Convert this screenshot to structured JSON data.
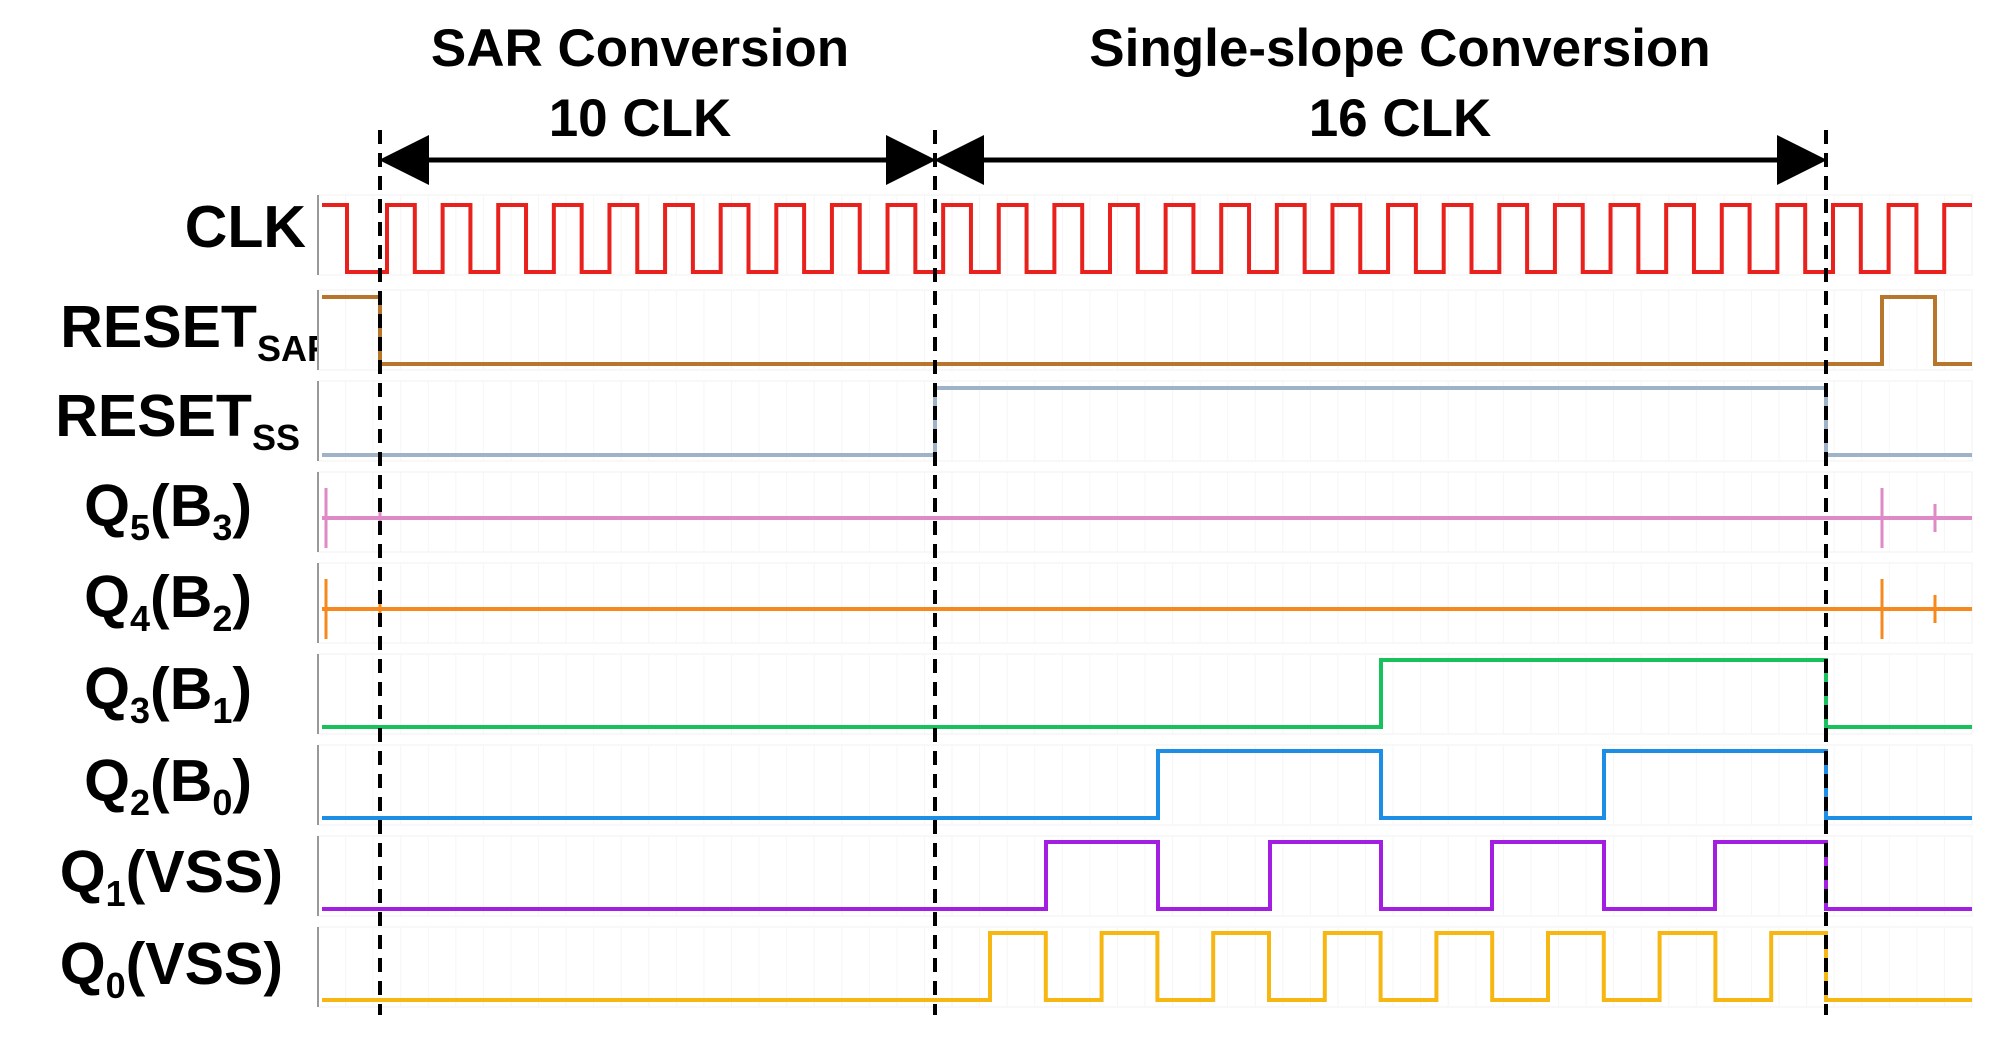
{
  "header": {
    "sar_title": "SAR Conversion",
    "sar_clk": "10 CLK",
    "ss_title": "Single-slope Conversion",
    "ss_clk": "16 CLK"
  },
  "signals": [
    {
      "id": "clk",
      "base": "CLK",
      "sub": "",
      "suffix": "",
      "color": "#e8211c"
    },
    {
      "id": "reset_sar",
      "base": "RESET",
      "sub": "SAR",
      "suffix": "",
      "color": "#b8762c"
    },
    {
      "id": "reset_ss",
      "base": "RESET",
      "sub": "SS",
      "suffix": "",
      "color": "#9fb3c8"
    },
    {
      "id": "q5",
      "base": "Q",
      "sub": "5",
      "suffix": "(B",
      "sub2": "3",
      "suffix2": ")",
      "color": "#de8ac6"
    },
    {
      "id": "q4",
      "base": "Q",
      "sub": "4",
      "suffix": "(B",
      "sub2": "2",
      "suffix2": ")",
      "color": "#f5891e"
    },
    {
      "id": "q3",
      "base": "Q",
      "sub": "3",
      "suffix": "(B",
      "sub2": "1",
      "suffix2": ")",
      "color": "#19c15c"
    },
    {
      "id": "q2",
      "base": "Q",
      "sub": "2",
      "suffix": "(B",
      "sub2": "0",
      "suffix2": ")",
      "color": "#1c8ee6"
    },
    {
      "id": "q1",
      "base": "Q",
      "sub": "1",
      "suffix": "(VSS)",
      "sub2": "",
      "suffix2": "",
      "color": "#a21ee0"
    },
    {
      "id": "q0",
      "base": "Q",
      "sub": "0",
      "suffix": "(VSS)",
      "sub2": "",
      "suffix2": "",
      "color": "#f7b712"
    }
  ]
}
